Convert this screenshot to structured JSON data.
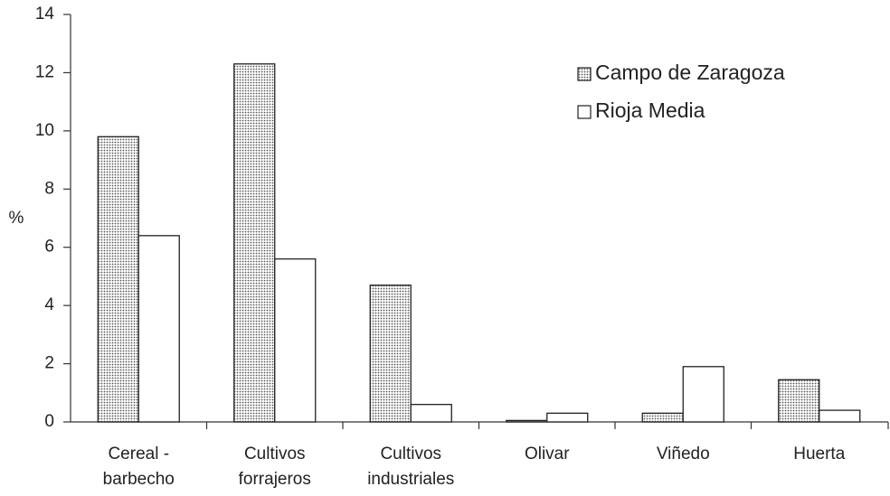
{
  "chart_data": {
    "type": "bar",
    "y_label": "%",
    "categories": [
      [
        "Cereal -",
        "barbecho"
      ],
      [
        "Cultivos",
        "forrajeros"
      ],
      [
        "Cultivos",
        "industriales"
      ],
      [
        "Olivar"
      ],
      [
        "Viñedo"
      ],
      [
        "Huerta"
      ]
    ],
    "series": [
      {
        "name": "Campo de Zaragoza",
        "color": "#c4c4c4",
        "values": [
          9.8,
          12.3,
          4.7,
          0.05,
          0.3,
          1.45
        ]
      },
      {
        "name": "Rioja Media",
        "color": "#ffffff",
        "values": [
          6.4,
          5.6,
          0.6,
          0.3,
          1.9,
          0.4
        ]
      }
    ],
    "ylim": [
      0,
      14
    ],
    "yticks": [
      0,
      2,
      4,
      6,
      8,
      10,
      12,
      14
    ],
    "legend": "upper right"
  }
}
